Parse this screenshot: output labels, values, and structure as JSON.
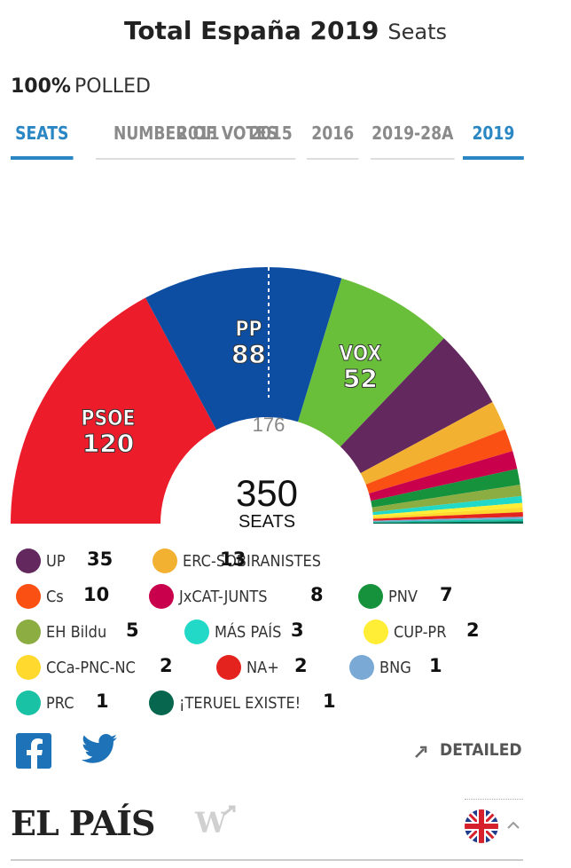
{
  "header": {
    "title": "Total España 2019",
    "subtitle": "Seats"
  },
  "polled": {
    "percent": "100%",
    "label": "POLLED"
  },
  "tabs": [
    {
      "label": "SEATS",
      "active": true
    },
    {
      "label": "NUMBER OF VOTES",
      "active": false
    },
    {
      "label": "2015",
      "active": false
    },
    {
      "label": "2016",
      "active": false
    },
    {
      "label": "2019-28A",
      "active": false
    },
    {
      "label": "2019",
      "active": true
    }
  ],
  "overlap_label": "2011",
  "chart_data": {
    "type": "pie",
    "total_seats": 350,
    "total_label": "SEATS",
    "majority": 176,
    "parties": [
      {
        "name": "PSOE",
        "seats": 120,
        "color": "#ec1c2b",
        "labeled": true
      },
      {
        "name": "PP",
        "seats": 88,
        "color": "#0d4ea3",
        "labeled": true
      },
      {
        "name": "VOX",
        "seats": 52,
        "color": "#6abf3a",
        "labeled": true
      },
      {
        "name": "UP",
        "seats": 35,
        "color": "#63285e"
      },
      {
        "name": "ERC-SOBIRANISTES",
        "seats": 13,
        "color": "#f3b131"
      },
      {
        "name": "Cs",
        "seats": 10,
        "color": "#fa5014"
      },
      {
        "name": "JxCAT-JUNTS",
        "seats": 8,
        "color": "#c9004c"
      },
      {
        "name": "PNV",
        "seats": 7,
        "color": "#16923c"
      },
      {
        "name": "EH Bildu",
        "seats": 5,
        "color": "#8cad41"
      },
      {
        "name": "MÁS PAÍS",
        "seats": 3,
        "color": "#22d8c6"
      },
      {
        "name": "CUP-PR",
        "seats": 2,
        "color": "#ffee35"
      },
      {
        "name": "CCa-PNC-NC",
        "seats": 2,
        "color": "#ffd92e"
      },
      {
        "name": "NA+",
        "seats": 2,
        "color": "#e5231e"
      },
      {
        "name": "BNG",
        "seats": 1,
        "color": "#79a9d4"
      },
      {
        "name": "PRC",
        "seats": 1,
        "color": "#19c2a5"
      },
      {
        "name": "¡TERUEL EXISTE!",
        "seats": 1,
        "color": "#06674e"
      }
    ]
  },
  "footer": {
    "detailed_label": "DETAILED",
    "logo": "EL PAÍS",
    "w_logo": "W"
  },
  "icons": [
    "facebook-icon",
    "twitter-icon",
    "expand-icon",
    "uk-flag-icon",
    "chevron-up-icon"
  ]
}
